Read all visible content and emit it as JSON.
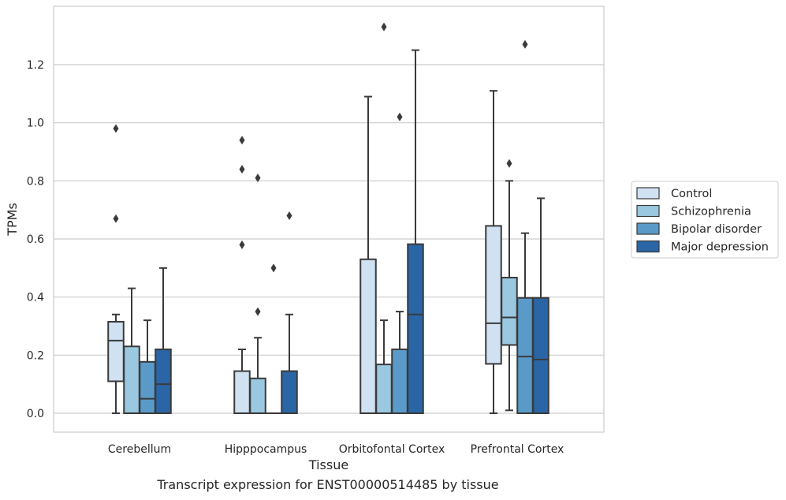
{
  "caption": "Transcript expression for ENST00000514485 by tissue",
  "chart_data": {
    "type": "box",
    "xlabel": "Tissue",
    "ylabel": "TPMs",
    "ylim": [
      -0.065,
      1.4
    ],
    "yticks": [
      0.0,
      0.2,
      0.4,
      0.6,
      0.8,
      1.0,
      1.2
    ],
    "ytick_labels": [
      "0.0",
      "0.2",
      "0.4",
      "0.6",
      "0.8",
      "1.0",
      "1.2"
    ],
    "grid": "horizontal",
    "legend_position": "right",
    "categories": [
      "Cerebellum",
      "Hipppocampus",
      "Orbitofontal Cortex",
      "Prefrontal Cortex"
    ],
    "series": [
      {
        "name": "Control",
        "color": "#d0e1f2",
        "boxes": [
          {
            "whislo": 0.0,
            "q1": 0.11,
            "med": 0.25,
            "q3": 0.315,
            "whishi": 0.34,
            "fliers": [
              0.67,
              0.98
            ]
          },
          {
            "whislo": 0.0,
            "q1": 0.0,
            "med": 0.0,
            "q3": 0.145,
            "whishi": 0.22,
            "fliers": [
              0.58,
              0.84,
              0.94
            ]
          },
          {
            "whislo": 0.0,
            "q1": 0.0,
            "med": 0.0,
            "q3": 0.53,
            "whishi": 1.09,
            "fliers": []
          },
          {
            "whislo": 0.0,
            "q1": 0.17,
            "med": 0.31,
            "q3": 0.645,
            "whishi": 1.11,
            "fliers": []
          }
        ]
      },
      {
        "name": "Schizophrenia",
        "color": "#9ac8e0",
        "boxes": [
          {
            "whislo": 0.0,
            "q1": 0.0,
            "med": 0.0,
            "q3": 0.23,
            "whishi": 0.43,
            "fliers": []
          },
          {
            "whislo": 0.0,
            "q1": 0.0,
            "med": 0.0,
            "q3": 0.12,
            "whishi": 0.26,
            "fliers": [
              0.35,
              0.81
            ]
          },
          {
            "whislo": 0.0,
            "q1": 0.0,
            "med": 0.0,
            "q3": 0.168,
            "whishi": 0.32,
            "fliers": [
              1.33
            ]
          },
          {
            "whislo": 0.01,
            "q1": 0.235,
            "med": 0.33,
            "q3": 0.467,
            "whishi": 0.8,
            "fliers": [
              0.86
            ]
          }
        ]
      },
      {
        "name": "Bipolar disorder",
        "color": "#5a9ac8",
        "boxes": [
          {
            "whislo": 0.0,
            "q1": 0.0,
            "med": 0.05,
            "q3": 0.177,
            "whishi": 0.32,
            "fliers": []
          },
          {
            "whislo": 0.0,
            "q1": 0.0,
            "med": 0.0,
            "q3": 0.0,
            "whishi": 0.0,
            "fliers": [
              0.5
            ]
          },
          {
            "whislo": 0.0,
            "q1": 0.0,
            "med": 0.0,
            "q3": 0.22,
            "whishi": 0.35,
            "fliers": [
              1.02
            ]
          },
          {
            "whislo": 0.0,
            "q1": 0.0,
            "med": 0.195,
            "q3": 0.397,
            "whishi": 0.62,
            "fliers": [
              1.27
            ]
          }
        ]
      },
      {
        "name": "Major depression",
        "color": "#2a66a6",
        "boxes": [
          {
            "whislo": 0.0,
            "q1": 0.0,
            "med": 0.1,
            "q3": 0.22,
            "whishi": 0.5,
            "fliers": []
          },
          {
            "whislo": 0.0,
            "q1": 0.0,
            "med": 0.0,
            "q3": 0.145,
            "whishi": 0.34,
            "fliers": [
              0.68
            ]
          },
          {
            "whislo": 0.0,
            "q1": 0.0,
            "med": 0.34,
            "q3": 0.582,
            "whishi": 1.25,
            "fliers": []
          },
          {
            "whislo": 0.0,
            "q1": 0.0,
            "med": 0.185,
            "q3": 0.397,
            "whishi": 0.74,
            "fliers": []
          }
        ]
      }
    ]
  }
}
